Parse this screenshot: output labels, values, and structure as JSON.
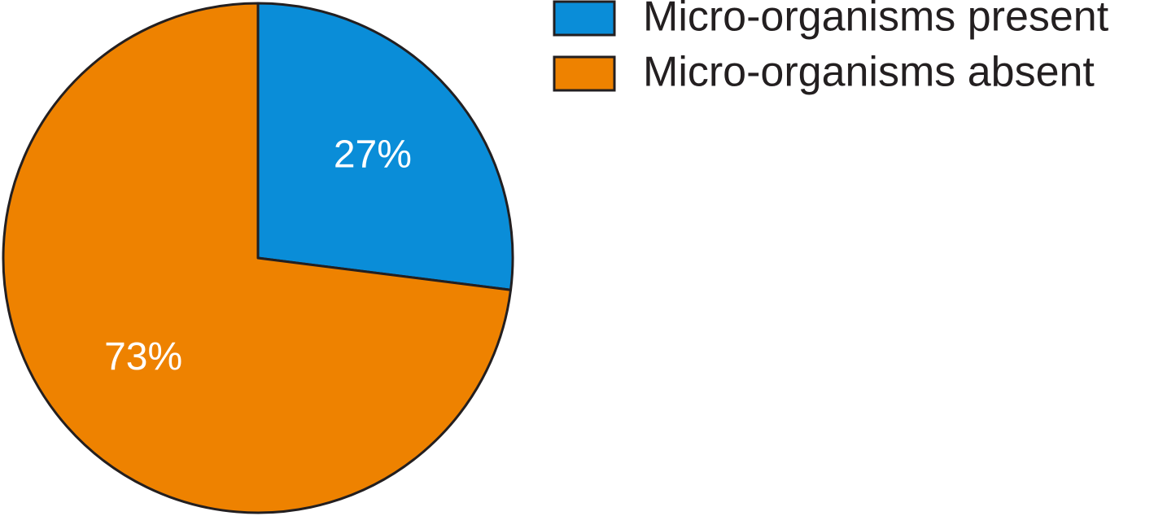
{
  "chart_data": {
    "type": "pie",
    "categories": [
      "Micro-organisms present",
      "Micro-organisms absent"
    ],
    "values": [
      27,
      73
    ],
    "value_labels": [
      "27%",
      "73%"
    ],
    "colors": [
      "#0a8dd8",
      "#ee8200"
    ],
    "start": "top",
    "direction": "clockwise",
    "legend": "top-right"
  }
}
